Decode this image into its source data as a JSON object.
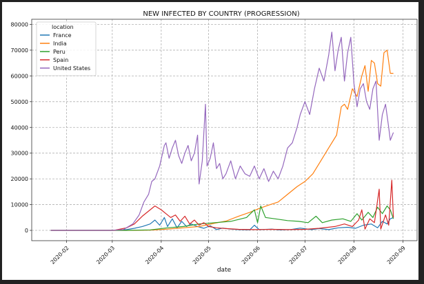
{
  "chart_data": {
    "type": "line",
    "title": "NEW INFECTED BY COUNTRY (PROGRESSION)",
    "xlabel": "date",
    "ylabel": "",
    "grid": true,
    "legend": {
      "title": "location",
      "placement": "top-left"
    },
    "xlim": [
      "2020-01-10",
      "2020-09-10"
    ],
    "ylim": [
      -4000,
      82000
    ],
    "x_ticks": [
      "2020-02",
      "2020-03",
      "2020-04",
      "2020-05",
      "2020-06",
      "2020-07",
      "2020-08",
      "2020-09"
    ],
    "y_ticks": [
      "0",
      "10000",
      "20000",
      "30000",
      "40000",
      "50000",
      "60000",
      "70000",
      "80000"
    ],
    "series": [
      {
        "name": "France",
        "color": "#1f77b4",
        "points": [
          [
            "2020-01-22",
            0
          ],
          [
            "2020-02-29",
            0
          ],
          [
            "2020-03-05",
            100
          ],
          [
            "2020-03-10",
            300
          ],
          [
            "2020-03-15",
            800
          ],
          [
            "2020-03-20",
            1500
          ],
          [
            "2020-03-25",
            2500
          ],
          [
            "2020-03-28",
            4000
          ],
          [
            "2020-03-31",
            2000
          ],
          [
            "2020-04-03",
            5000
          ],
          [
            "2020-04-05",
            1500
          ],
          [
            "2020-04-08",
            4500
          ],
          [
            "2020-04-11",
            1000
          ],
          [
            "2020-04-14",
            3500
          ],
          [
            "2020-04-17",
            1500
          ],
          [
            "2020-04-20",
            2500
          ],
          [
            "2020-04-24",
            1500
          ],
          [
            "2020-04-28",
            800
          ],
          [
            "2020-05-02",
            1800
          ],
          [
            "2020-05-06",
            300
          ],
          [
            "2020-05-10",
            900
          ],
          [
            "2020-05-15",
            500
          ],
          [
            "2020-05-20",
            300
          ],
          [
            "2020-05-27",
            200
          ],
          [
            "2020-05-30",
            2000
          ],
          [
            "2020-06-02",
            300
          ],
          [
            "2020-06-10",
            500
          ],
          [
            "2020-06-15",
            200
          ],
          [
            "2020-06-22",
            300
          ],
          [
            "2020-06-28",
            900
          ],
          [
            "2020-07-05",
            300
          ],
          [
            "2020-07-10",
            700
          ],
          [
            "2020-07-16",
            300
          ],
          [
            "2020-07-22",
            1000
          ],
          [
            "2020-07-28",
            1200
          ],
          [
            "2020-08-02",
            800
          ],
          [
            "2020-08-07",
            2000
          ],
          [
            "2020-08-12",
            2500
          ],
          [
            "2020-08-16",
            1000
          ],
          [
            "2020-08-19",
            3500
          ],
          [
            "2020-08-22",
            2500
          ],
          [
            "2020-08-24",
            4500
          ],
          [
            "2020-08-26",
            5000
          ]
        ]
      },
      {
        "name": "India",
        "color": "#ff7f0e",
        "points": [
          [
            "2020-01-22",
            0
          ],
          [
            "2020-03-15",
            0
          ],
          [
            "2020-03-25",
            100
          ],
          [
            "2020-04-05",
            500
          ],
          [
            "2020-04-15",
            1000
          ],
          [
            "2020-04-25",
            1500
          ],
          [
            "2020-05-05",
            2800
          ],
          [
            "2020-05-12",
            3600
          ],
          [
            "2020-05-20",
            5500
          ],
          [
            "2020-05-27",
            7000
          ],
          [
            "2020-06-02",
            8500
          ],
          [
            "2020-06-08",
            9800
          ],
          [
            "2020-06-14",
            11000
          ],
          [
            "2020-06-20",
            14000
          ],
          [
            "2020-06-26",
            17000
          ],
          [
            "2020-07-01",
            19000
          ],
          [
            "2020-07-06",
            22000
          ],
          [
            "2020-07-11",
            27000
          ],
          [
            "2020-07-16",
            32000
          ],
          [
            "2020-07-21",
            37000
          ],
          [
            "2020-07-24",
            48000
          ],
          [
            "2020-07-26",
            49000
          ],
          [
            "2020-07-28",
            47000
          ],
          [
            "2020-07-31",
            55000
          ],
          [
            "2020-08-03",
            52000
          ],
          [
            "2020-08-06",
            60000
          ],
          [
            "2020-08-08",
            64000
          ],
          [
            "2020-08-10",
            54000
          ],
          [
            "2020-08-12",
            66000
          ],
          [
            "2020-08-14",
            65000
          ],
          [
            "2020-08-16",
            57000
          ],
          [
            "2020-08-18",
            56000
          ],
          [
            "2020-08-20",
            69000
          ],
          [
            "2020-08-22",
            70000
          ],
          [
            "2020-08-24",
            61000
          ],
          [
            "2020-08-26",
            61000
          ]
        ]
      },
      {
        "name": "Peru",
        "color": "#2ca02c",
        "points": [
          [
            "2020-01-22",
            0
          ],
          [
            "2020-03-10",
            0
          ],
          [
            "2020-03-25",
            200
          ],
          [
            "2020-04-05",
            1000
          ],
          [
            "2020-04-15",
            1500
          ],
          [
            "2020-04-25",
            2500
          ],
          [
            "2020-05-05",
            3000
          ],
          [
            "2020-05-15",
            3500
          ],
          [
            "2020-05-25",
            5000
          ],
          [
            "2020-05-30",
            8000
          ],
          [
            "2020-06-01",
            3000
          ],
          [
            "2020-06-03",
            9500
          ],
          [
            "2020-06-06",
            5000
          ],
          [
            "2020-06-12",
            4500
          ],
          [
            "2020-06-20",
            3800
          ],
          [
            "2020-06-27",
            3500
          ],
          [
            "2020-07-03",
            3000
          ],
          [
            "2020-07-08",
            5500
          ],
          [
            "2020-07-12",
            3000
          ],
          [
            "2020-07-18",
            4000
          ],
          [
            "2020-07-25",
            4500
          ],
          [
            "2020-07-30",
            3500
          ],
          [
            "2020-08-03",
            6500
          ],
          [
            "2020-08-06",
            4000
          ],
          [
            "2020-08-10",
            7000
          ],
          [
            "2020-08-13",
            5000
          ],
          [
            "2020-08-16",
            9000
          ],
          [
            "2020-08-19",
            6500
          ],
          [
            "2020-08-22",
            9500
          ],
          [
            "2020-08-24",
            8000
          ],
          [
            "2020-08-26",
            4500
          ]
        ]
      },
      {
        "name": "Spain",
        "color": "#d62728",
        "points": [
          [
            "2020-01-22",
            0
          ],
          [
            "2020-03-02",
            0
          ],
          [
            "2020-03-10",
            1000
          ],
          [
            "2020-03-15",
            2500
          ],
          [
            "2020-03-20",
            5500
          ],
          [
            "2020-03-25",
            8000
          ],
          [
            "2020-03-28",
            9500
          ],
          [
            "2020-04-01",
            8000
          ],
          [
            "2020-04-04",
            6500
          ],
          [
            "2020-04-07",
            5000
          ],
          [
            "2020-04-10",
            6000
          ],
          [
            "2020-04-13",
            3500
          ],
          [
            "2020-04-16",
            5500
          ],
          [
            "2020-04-19",
            2500
          ],
          [
            "2020-04-22",
            4000
          ],
          [
            "2020-04-25",
            2000
          ],
          [
            "2020-04-28",
            3000
          ],
          [
            "2020-05-01",
            1500
          ],
          [
            "2020-05-06",
            1000
          ],
          [
            "2020-05-12",
            700
          ],
          [
            "2020-05-20",
            400
          ],
          [
            "2020-05-30",
            300
          ],
          [
            "2020-06-10",
            400
          ],
          [
            "2020-06-20",
            300
          ],
          [
            "2020-07-01",
            400
          ],
          [
            "2020-07-10",
            800
          ],
          [
            "2020-07-20",
            1500
          ],
          [
            "2020-07-26",
            2500
          ],
          [
            "2020-07-31",
            1500
          ],
          [
            "2020-08-04",
            4000
          ],
          [
            "2020-08-06",
            8000
          ],
          [
            "2020-08-08",
            500
          ],
          [
            "2020-08-11",
            4500
          ],
          [
            "2020-08-14",
            3000
          ],
          [
            "2020-08-17",
            16000
          ],
          [
            "2020-08-18",
            500
          ],
          [
            "2020-08-21",
            6000
          ],
          [
            "2020-08-23",
            2000
          ],
          [
            "2020-08-25",
            19500
          ],
          [
            "2020-08-26",
            5000
          ]
        ]
      },
      {
        "name": "United States",
        "color": "#9467bd",
        "points": [
          [
            "2020-01-22",
            0
          ],
          [
            "2020-03-01",
            0
          ],
          [
            "2020-03-08",
            300
          ],
          [
            "2020-03-14",
            2500
          ],
          [
            "2020-03-18",
            6000
          ],
          [
            "2020-03-21",
            11000
          ],
          [
            "2020-03-24",
            14000
          ],
          [
            "2020-03-26",
            19000
          ],
          [
            "2020-03-28",
            20000
          ],
          [
            "2020-03-31",
            25000
          ],
          [
            "2020-04-03",
            33000
          ],
          [
            "2020-04-04",
            34000
          ],
          [
            "2020-04-06",
            28000
          ],
          [
            "2020-04-08",
            32000
          ],
          [
            "2020-04-10",
            35000
          ],
          [
            "2020-04-12",
            29000
          ],
          [
            "2020-04-14",
            26000
          ],
          [
            "2020-04-16",
            30000
          ],
          [
            "2020-04-18",
            33000
          ],
          [
            "2020-04-20",
            27000
          ],
          [
            "2020-04-22",
            30000
          ],
          [
            "2020-04-24",
            37000
          ],
          [
            "2020-04-25",
            18000
          ],
          [
            "2020-04-27",
            27000
          ],
          [
            "2020-04-29",
            49000
          ],
          [
            "2020-04-30",
            25000
          ],
          [
            "2020-05-02",
            28000
          ],
          [
            "2020-05-04",
            34000
          ],
          [
            "2020-05-06",
            24000
          ],
          [
            "2020-05-08",
            26000
          ],
          [
            "2020-05-10",
            20000
          ],
          [
            "2020-05-12",
            22000
          ],
          [
            "2020-05-15",
            27000
          ],
          [
            "2020-05-18",
            20000
          ],
          [
            "2020-05-21",
            25000
          ],
          [
            "2020-05-24",
            22000
          ],
          [
            "2020-05-27",
            21000
          ],
          [
            "2020-05-30",
            25000
          ],
          [
            "2020-06-02",
            20000
          ],
          [
            "2020-06-05",
            24000
          ],
          [
            "2020-06-08",
            19000
          ],
          [
            "2020-06-11",
            23000
          ],
          [
            "2020-06-14",
            20000
          ],
          [
            "2020-06-17",
            25000
          ],
          [
            "2020-06-20",
            32000
          ],
          [
            "2020-06-23",
            34000
          ],
          [
            "2020-06-26",
            40000
          ],
          [
            "2020-06-28",
            45000
          ],
          [
            "2020-07-01",
            50000
          ],
          [
            "2020-07-04",
            45000
          ],
          [
            "2020-07-07",
            55000
          ],
          [
            "2020-07-10",
            63000
          ],
          [
            "2020-07-13",
            58000
          ],
          [
            "2020-07-16",
            68000
          ],
          [
            "2020-07-18",
            77000
          ],
          [
            "2020-07-20",
            62000
          ],
          [
            "2020-07-22",
            70000
          ],
          [
            "2020-07-24",
            75000
          ],
          [
            "2020-07-26",
            58000
          ],
          [
            "2020-07-28",
            69000
          ],
          [
            "2020-07-30",
            75000
          ],
          [
            "2020-08-01",
            57000
          ],
          [
            "2020-08-03",
            48000
          ],
          [
            "2020-08-05",
            55000
          ],
          [
            "2020-08-07",
            57000
          ],
          [
            "2020-08-09",
            50000
          ],
          [
            "2020-08-11",
            47000
          ],
          [
            "2020-08-13",
            55000
          ],
          [
            "2020-08-15",
            58000
          ],
          [
            "2020-08-17",
            35000
          ],
          [
            "2020-08-19",
            45000
          ],
          [
            "2020-08-21",
            49000
          ],
          [
            "2020-08-23",
            40000
          ],
          [
            "2020-08-24",
            35000
          ],
          [
            "2020-08-26",
            38000
          ]
        ]
      }
    ]
  }
}
